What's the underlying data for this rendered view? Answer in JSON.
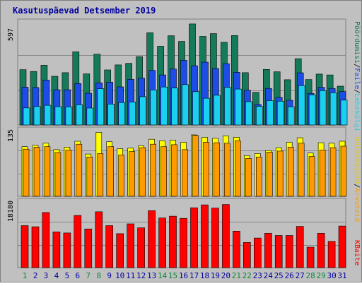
{
  "title": "Kasutuspäevad Detsember 2019",
  "colors": {
    "background": "#c0c0c0",
    "plot_bg": "#c0c0c0",
    "title": "#0000a0",
    "grid": "#8a8a8a",
    "pages": "#157a5a",
    "files": "#1c4de6",
    "hits": "#1ad0f0",
    "visits": "#ffff00",
    "sites": "#ff9a00",
    "kbytes": "#ff0000",
    "weekday_label": "#0a8a3a",
    "weekend_label": "#3a8a6a",
    "ylabel_top": "#157a5a"
  },
  "chart_data": [
    {
      "type": "bar",
      "name": "top",
      "ymax_label": "597",
      "ylim": [
        0,
        597
      ],
      "grid": true,
      "right_label": {
        "parts": [
          "Pöördumisi",
          "/",
          "Faile",
          "/",
          "Lehekülgi"
        ],
        "colors": [
          "#157a5a",
          "#000000",
          "#1c4de6",
          "#000000",
          "#1ad0f0"
        ]
      },
      "categories": [
        "1",
        "2",
        "3",
        "4",
        "5",
        "6",
        "7",
        "8",
        "9",
        "10",
        "11",
        "12",
        "13",
        "14",
        "15",
        "16",
        "17",
        "18",
        "19",
        "20",
        "21",
        "22",
        "23",
        "24",
        "25",
        "26",
        "27",
        "28",
        "29",
        "30",
        "31"
      ],
      "series": [
        {
          "key": "pages",
          "values": [
            320,
            310,
            346,
            282,
            303,
            424,
            296,
            410,
            319,
            348,
            357,
            396,
            534,
            456,
            517,
            484,
            585,
            513,
            529,
            479,
            518,
            303,
            189,
            322,
            308,
            262,
            384,
            263,
            295,
            290,
            225
          ]
        },
        {
          "key": "files",
          "values": [
            219,
            217,
            260,
            204,
            204,
            240,
            184,
            244,
            248,
            221,
            264,
            271,
            316,
            290,
            324,
            374,
            343,
            364,
            327,
            355,
            305,
            201,
            119,
            212,
            160,
            143,
            302,
            183,
            218,
            212,
            194
          ]
        },
        {
          "key": "hits",
          "values": [
            99,
            107,
            114,
            106,
            105,
            117,
            98,
            210,
            121,
            130,
            133,
            164,
            203,
            220,
            214,
            234,
            193,
            155,
            172,
            218,
            208,
            135,
            108,
            141,
            138,
            106,
            228,
            174,
            199,
            187,
            144
          ]
        }
      ]
    },
    {
      "type": "bar",
      "name": "middle",
      "ymax_label": "135",
      "ylim": [
        0,
        135
      ],
      "grid": true,
      "right_label": {
        "parts": [
          "Külastajaid",
          "/",
          "Arvuteid"
        ],
        "colors": [
          "#e6c800",
          "#000000",
          "#ff9a00"
        ]
      },
      "categories": [
        "1",
        "2",
        "3",
        "4",
        "5",
        "6",
        "7",
        "8",
        "9",
        "10",
        "11",
        "12",
        "13",
        "14",
        "15",
        "16",
        "17",
        "18",
        "19",
        "20",
        "21",
        "22",
        "23",
        "24",
        "25",
        "26",
        "27",
        "28",
        "29",
        "30",
        "31"
      ],
      "series": [
        {
          "key": "visits",
          "values": [
            101,
            104,
            108,
            95,
            100,
            112,
            86,
            130,
            111,
            97,
            98,
            103,
            116,
            113,
            114,
            110,
            125,
            120,
            118,
            123,
            120,
            83,
            87,
            93,
            99,
            110,
            119,
            88,
            109,
            108,
            112
          ]
        },
        {
          "key": "sites",
          "values": [
            96,
            100,
            101,
            89,
            94,
            106,
            80,
            87,
            101,
            84,
            91,
            99,
            106,
            101,
            105,
            95,
            124,
            110,
            109,
            108,
            113,
            77,
            80,
            90,
            92,
            100,
            108,
            81,
            94,
            99,
            102
          ]
        }
      ]
    },
    {
      "type": "bar",
      "name": "bottom",
      "ymax_label": "18180",
      "ylim": [
        0,
        18180
      ],
      "grid": true,
      "right_label": {
        "parts": [
          "KBaite"
        ],
        "colors": [
          "#ff0000"
        ]
      },
      "categories": [
        "1",
        "2",
        "3",
        "4",
        "5",
        "6",
        "7",
        "8",
        "9",
        "10",
        "11",
        "12",
        "13",
        "14",
        "15",
        "16",
        "17",
        "18",
        "19",
        "20",
        "21",
        "22",
        "23",
        "24",
        "25",
        "26",
        "27",
        "28",
        "29",
        "30",
        "31"
      ],
      "series": [
        {
          "key": "kbytes",
          "values": [
            11500,
            11200,
            15100,
            9800,
            9500,
            14300,
            10600,
            15300,
            11500,
            9300,
            12000,
            10900,
            15600,
            13600,
            14100,
            13500,
            16400,
            17200,
            16300,
            17300,
            10000,
            6900,
            8100,
            9400,
            8800,
            8800,
            11300,
            5600,
            9400,
            7200,
            11400
          ]
        }
      ]
    }
  ]
}
